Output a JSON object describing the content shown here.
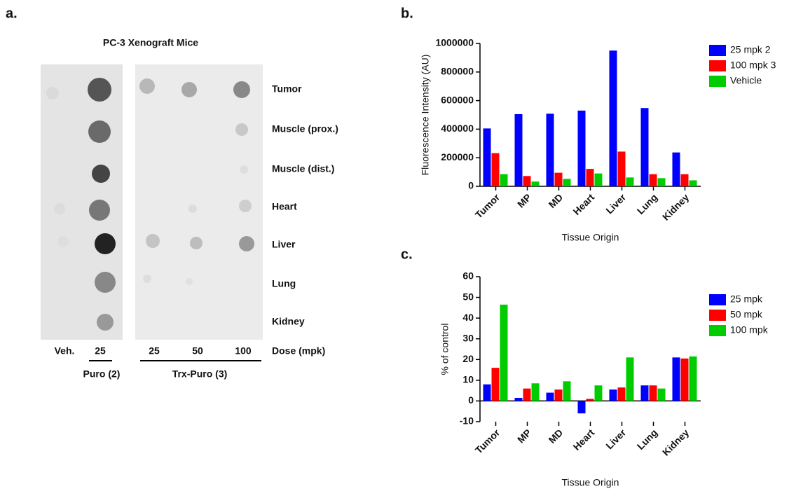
{
  "panel_labels": [
    "a.",
    "b.",
    "c."
  ],
  "blot": {
    "title": "PC-3 Xenograft Mice",
    "rows": [
      "Tumor",
      "Muscle (prox.)",
      "Muscle (dist.)",
      "Heart",
      "Liver",
      "Lung",
      "Kidney"
    ],
    "columns": [
      "Veh.",
      "25",
      "25",
      "50",
      "100"
    ],
    "dose_label": "Dose (mpk)",
    "groups": [
      "Puro (2)",
      "Trx-Puro (3)"
    ]
  },
  "chart_data": [
    {
      "type": "bar",
      "ylabel": "Fluorescence Intensity  (AU)",
      "xlabel": "Tissue Origin",
      "categories": [
        "Tumor",
        "MP",
        "MD",
        "Heart",
        "Liver",
        "Lung",
        "Kidney"
      ],
      "series": [
        {
          "name": "25 mpk 2",
          "color": "#0000ff",
          "values": [
            405000,
            505000,
            508000,
            530000,
            950000,
            548000,
            237000
          ]
        },
        {
          "name": "100 mpk 3",
          "color": "#ff0000",
          "values": [
            232000,
            72000,
            95000,
            122000,
            243000,
            85000,
            85000
          ]
        },
        {
          "name": "Vehicle",
          "color": "#00cc00",
          "values": [
            85000,
            33000,
            52000,
            90000,
            62000,
            57000,
            42000
          ]
        }
      ],
      "ylim": [
        0,
        1000000
      ],
      "yticks": [
        0,
        200000,
        400000,
        600000,
        800000,
        1000000
      ],
      "legend": "right"
    },
    {
      "type": "bar",
      "ylabel": "% of control",
      "xlabel": "Tissue Origin",
      "categories": [
        "Tumor",
        "MP",
        "MD",
        "Heart",
        "Liver",
        "Lung",
        "Kidney"
      ],
      "series": [
        {
          "name": "25 mpk",
          "color": "#0000ff",
          "values": [
            8,
            1.5,
            4,
            -6,
            5.5,
            7.5,
            21
          ]
        },
        {
          "name": "50 mpk",
          "color": "#ff0000",
          "values": [
            16,
            6,
            5.5,
            1,
            6.5,
            7.5,
            20.5
          ]
        },
        {
          "name": "100 mpk",
          "color": "#00cc00",
          "values": [
            46.5,
            8.5,
            9.5,
            7.5,
            21,
            6,
            21.5
          ]
        }
      ],
      "ylim": [
        -10,
        60
      ],
      "yticks": [
        -10,
        0,
        10,
        20,
        30,
        40,
        50,
        60
      ],
      "legend": "right"
    }
  ]
}
